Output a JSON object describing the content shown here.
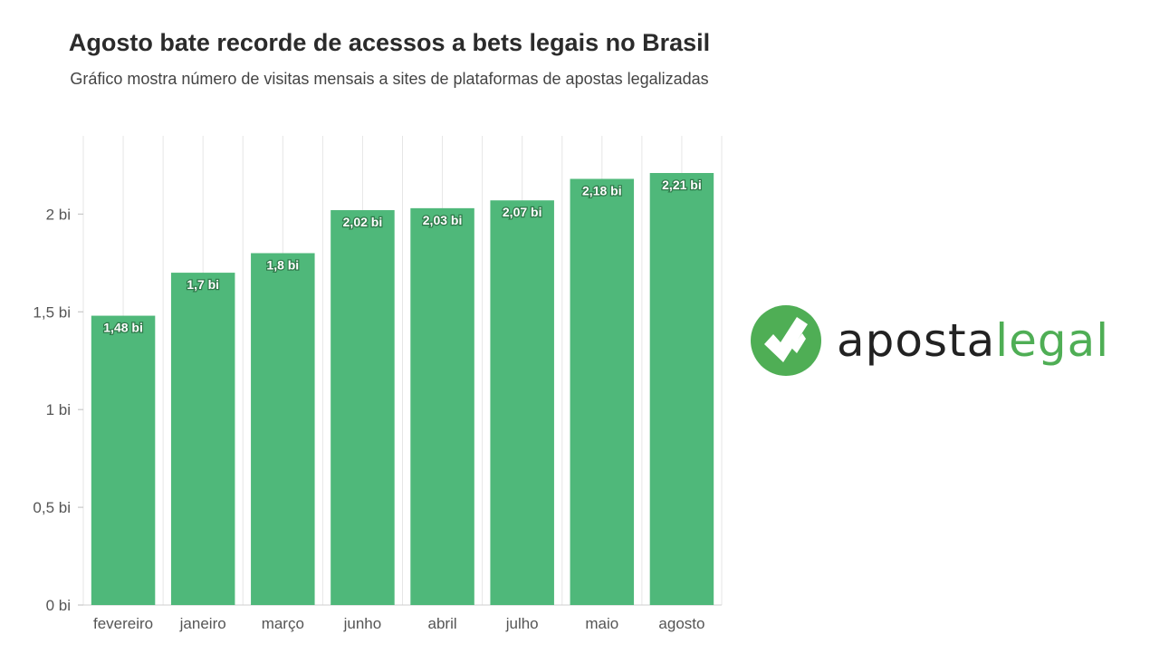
{
  "chart_data": {
    "type": "bar",
    "title": "Agosto bate recorde de acessos a bets legais no Brasil",
    "subtitle": "Gráfico mostra número de visitas mensais a sites de plataformas de apostas legalizadas",
    "categories": [
      "fevereiro",
      "janeiro",
      "março",
      "junho",
      "abril",
      "julho",
      "maio",
      "agosto"
    ],
    "values": [
      1.48,
      1.7,
      1.8,
      2.02,
      2.03,
      2.07,
      2.18,
      2.21
    ],
    "data_labels": [
      "1,48 bi",
      "1,7 bi",
      "1,8 bi",
      "2,02 bi",
      "2,03 bi",
      "2,07 bi",
      "2,18 bi",
      "2,21 bi"
    ],
    "xlabel": "",
    "ylabel": "",
    "ylim": [
      0,
      2.4
    ],
    "yticks": [
      0,
      0.5,
      1,
      1.5,
      2
    ],
    "ytick_labels": [
      "0 bi",
      "0,5 bi",
      "1 bi",
      "1,5 bi",
      "2 bi"
    ],
    "grid": "vertical",
    "bar_color": "#4fb87a",
    "grid_color": "#e6e6e6"
  },
  "logo": {
    "word1": "aposta",
    "word2": "legal",
    "icon": "checkmark-circle-icon",
    "circle_color": "#4fae55",
    "text_color": "#222222"
  }
}
